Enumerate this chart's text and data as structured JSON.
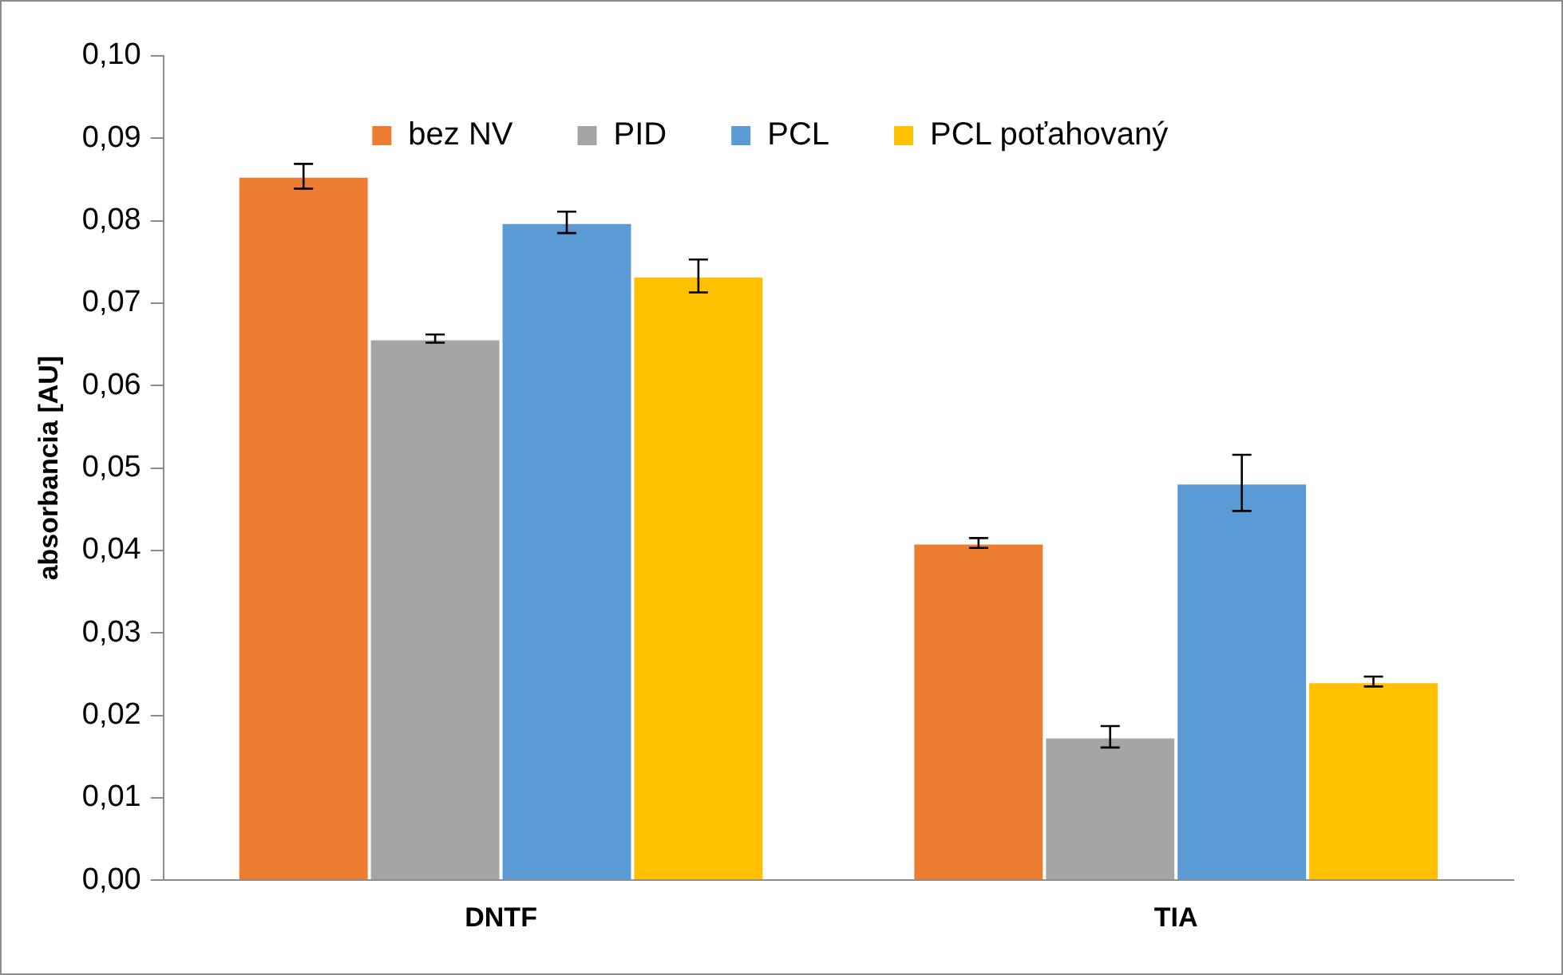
{
  "chart_data": {
    "type": "bar",
    "ylabel": "absorbancia [AU]",
    "categories": [
      "DNTF",
      "TIA"
    ],
    "series": [
      {
        "name": "bez NV",
        "color": "#ed7d31",
        "values": [
          0.0854,
          0.0409
        ],
        "errors": [
          0.0015,
          0.0006
        ]
      },
      {
        "name": "PID",
        "color": "#a5a5a5",
        "values": [
          0.0657,
          0.0174
        ],
        "errors": [
          0.0005,
          0.0013
        ]
      },
      {
        "name": "PCL",
        "color": "#5b9bd5",
        "values": [
          0.0798,
          0.0482
        ],
        "errors": [
          0.0013,
          0.0034
        ]
      },
      {
        "name": "PCL poťahovaný",
        "color": "#ffc000",
        "values": [
          0.0733,
          0.0241
        ],
        "errors": [
          0.002,
          0.0006
        ]
      }
    ],
    "ylim": [
      0,
      0.1
    ],
    "yticks": [
      {
        "value": 0,
        "label": "0,00"
      },
      {
        "value": 0.01,
        "label": "0,01"
      },
      {
        "value": 0.02,
        "label": "0,02"
      },
      {
        "value": 0.03,
        "label": "0,03"
      },
      {
        "value": 0.04,
        "label": "0,04"
      },
      {
        "value": 0.05,
        "label": "0,05"
      },
      {
        "value": 0.06,
        "label": "0,06"
      },
      {
        "value": 0.07,
        "label": "0,07"
      },
      {
        "value": 0.08,
        "label": "0,08"
      },
      {
        "value": 0.09,
        "label": "0,09"
      },
      {
        "value": 0.1,
        "label": "0,10"
      }
    ],
    "grid": false,
    "legend": "top"
  }
}
